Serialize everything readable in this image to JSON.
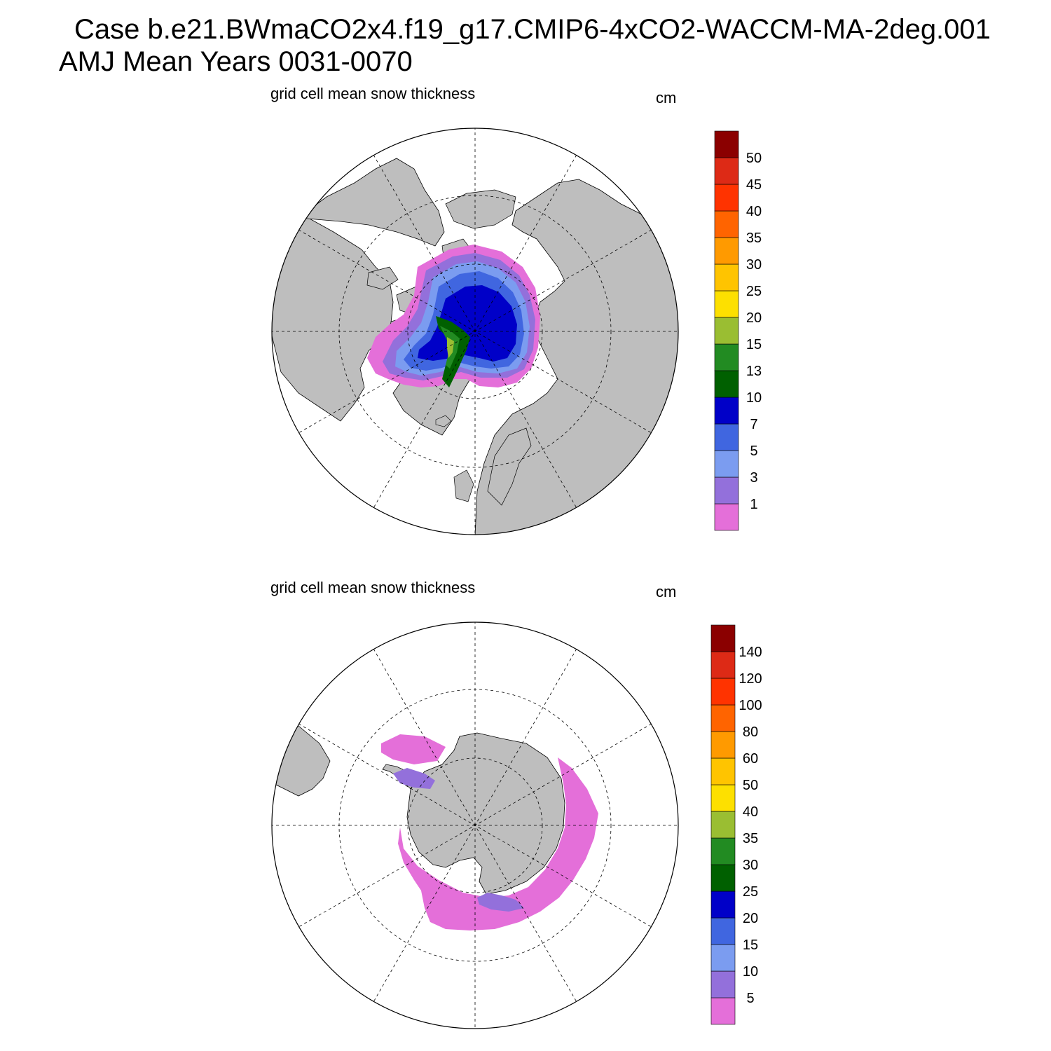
{
  "case_title": "Case b.e21.BWmaCO2x4.f19_g17.CMIP6-4xCO2-WACCM-MA-2deg.001",
  "period_title": "AMJ Mean   Years 0031-0070",
  "colors": {
    "land": "#bebebe",
    "ocean": "#ffffff",
    "bins": [
      "#e46fd9",
      "#9370db",
      "#7b9cf0",
      "#4066e0",
      "#0000c8",
      "#006000",
      "#228b22",
      "#9abe32",
      "#fde000",
      "#ffc400",
      "#ff9a00",
      "#ff6400",
      "#ff3300",
      "#dd2a16",
      "#8b0000"
    ]
  },
  "panels": [
    {
      "id": "north",
      "title": "grid cell mean snow thickness",
      "unit": "cm",
      "hemisphere": "Arctic",
      "colorbar_levels": [
        "1",
        "3",
        "5",
        "7",
        "10",
        "13",
        "15",
        "20",
        "25",
        "30",
        "35",
        "40",
        "45",
        "50"
      ]
    },
    {
      "id": "south",
      "title": "grid cell mean snow thickness",
      "unit": "cm",
      "hemisphere": "Antarctic",
      "colorbar_levels": [
        "5",
        "10",
        "15",
        "20",
        "25",
        "30",
        "35",
        "40",
        "50",
        "60",
        "80",
        "100",
        "120",
        "140"
      ]
    }
  ]
}
